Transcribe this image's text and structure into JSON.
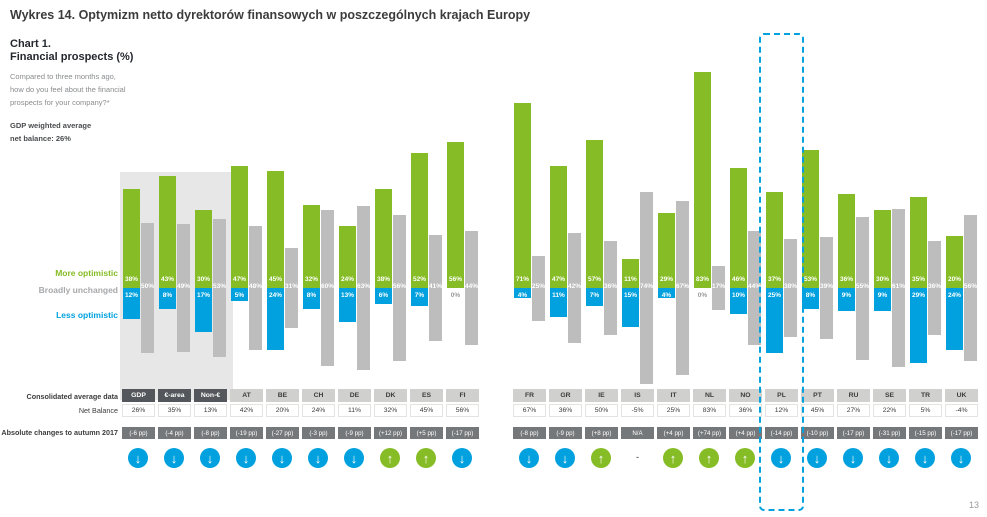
{
  "page_title": "Wykres 14. Optymizm netto dyrektorów finansowych w poszczególnych krajach Europy",
  "chart_header": {
    "title": "Chart 1.\nFinancial prospects (%)",
    "question": "Compared to three months ago,\nhow do you feel about the financial\nprospects for your company?*",
    "gdp_note": "GDP weighted average\nnet balance: 26%"
  },
  "legend": {
    "more": "More optimistic",
    "unchanged": "Broadly unchanged",
    "less": "Less optimistic"
  },
  "table": {
    "row1_label": "Consolidated average data",
    "row2_label": "Net Balance",
    "row3_label": "Absolute changes to autumn 2017"
  },
  "page_number": "13",
  "colors": {
    "green": "#86BC25",
    "blue": "#00A1DE",
    "gray": "#BDBDBD",
    "dark_header": "#53565A",
    "light_header": "#D0D0CE",
    "changes_row": "#75787B",
    "highlight": "#00A1DE"
  },
  "chart_data": {
    "type": "bar",
    "title": "Financial prospects (%)",
    "unit": "%",
    "categories": [
      "GDP",
      "€-area",
      "Non-€",
      "AT",
      "BE",
      "CH",
      "DE",
      "DK",
      "ES",
      "FI",
      "FR",
      "GR",
      "IE",
      "IS",
      "IT",
      "NL",
      "NO",
      "PL",
      "PT",
      "RU",
      "SE",
      "TR",
      "UK"
    ],
    "consolidated_categories": [
      "GDP",
      "€-area",
      "Non-€"
    ],
    "group_gap_after": "FI",
    "highlighted_category": "PL",
    "series": [
      {
        "name": "More optimistic",
        "color": "#86BC25",
        "values": [
          38,
          43,
          30,
          47,
          45,
          32,
          24,
          38,
          52,
          56,
          71,
          47,
          57,
          11,
          29,
          83,
          46,
          37,
          53,
          36,
          30,
          35,
          20
        ]
      },
      {
        "name": "Broadly unchanged",
        "color": "#BDBDBD",
        "values": [
          50,
          49,
          53,
          48,
          31,
          60,
          63,
          56,
          41,
          44,
          25,
          42,
          36,
          74,
          67,
          17,
          44,
          38,
          39,
          55,
          61,
          36,
          56
        ]
      },
      {
        "name": "Less optimistic",
        "color": "#00A1DE",
        "values": [
          12,
          8,
          17,
          5,
          24,
          8,
          13,
          6,
          7,
          0,
          4,
          11,
          7,
          15,
          4,
          0,
          10,
          25,
          8,
          9,
          9,
          29,
          24
        ]
      }
    ],
    "net_balance": [
      "26%",
      "35%",
      "13%",
      "42%",
      "20%",
      "24%",
      "11%",
      "32%",
      "45%",
      "56%",
      "67%",
      "36%",
      "50%",
      "-5%",
      "25%",
      "83%",
      "36%",
      "12%",
      "45%",
      "27%",
      "22%",
      "5%",
      "-4%"
    ],
    "changes_to_autumn_2017": [
      "(-6 pp)",
      "(-4 pp)",
      "(-8 pp)",
      "(-19 pp)",
      "(-27 pp)",
      "(-3 pp)",
      "(-9 pp)",
      "(+12 pp)",
      "(+5 pp)",
      "(-17 pp)",
      "(-8 pp)",
      "(-9 pp)",
      "(+8 pp)",
      "N/A",
      "(+4 pp)",
      "(+74 pp)",
      "(+4 pp)",
      "(-14 pp)",
      "(-10 pp)",
      "(-17 pp)",
      "(-31 pp)",
      "(-15 pp)",
      "(-17 pp)"
    ],
    "trend": [
      "down",
      "down",
      "down",
      "down",
      "down",
      "down",
      "down",
      "up",
      "up",
      "down",
      "down",
      "down",
      "up",
      "na",
      "up",
      "up",
      "up",
      "down",
      "down",
      "down",
      "down",
      "down",
      "down"
    ]
  }
}
